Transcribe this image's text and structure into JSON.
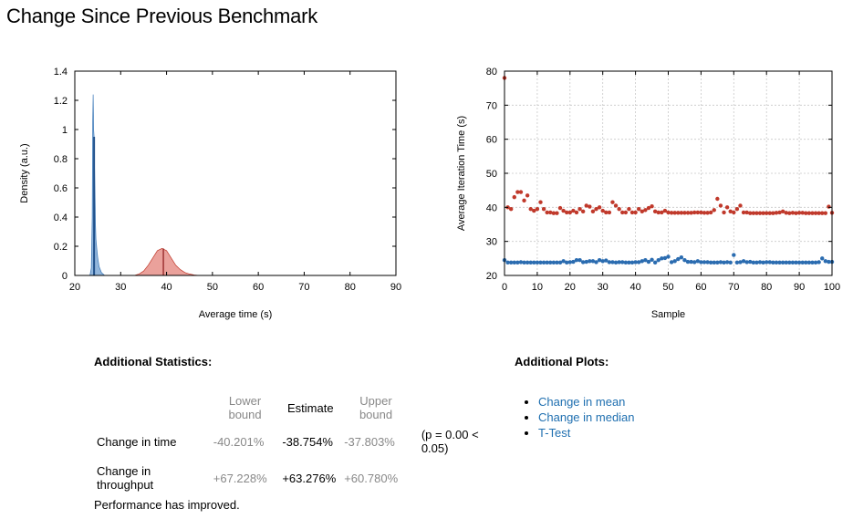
{
  "title": "Change Since Previous Benchmark",
  "chart_data": [
    {
      "type": "area",
      "name": "density",
      "xlabel": "Average time (s)",
      "ylabel": "Density (a.u.)",
      "xlim": [
        20,
        90
      ],
      "ylim": [
        0,
        1.4
      ],
      "xticks": [
        20,
        30,
        40,
        50,
        60,
        70,
        80,
        90
      ],
      "yticks": [
        0,
        0.2,
        0.4,
        0.6,
        0.8,
        1,
        1.2,
        1.4
      ],
      "series": [
        {
          "color": "#3b78b8",
          "fill": "#7fa9d6",
          "x": [
            23.3,
            23.6,
            23.8,
            23.9,
            24.0,
            24.1,
            24.2,
            24.3,
            24.4,
            24.5,
            24.6,
            24.8,
            25.0,
            25.3,
            25.8,
            26.5
          ],
          "y": [
            0,
            0.05,
            0.4,
            1.05,
            1.24,
            1.0,
            0.95,
            0.75,
            0.55,
            0.35,
            0.25,
            0.18,
            0.12,
            0.06,
            0.02,
            0
          ],
          "estimate": 24.2
        },
        {
          "color": "#c0392b",
          "fill": "#e6908a",
          "x": [
            33,
            34,
            35,
            36,
            37,
            38,
            39,
            40,
            41,
            42,
            43,
            44,
            45,
            46,
            47
          ],
          "y": [
            0,
            0.01,
            0.03,
            0.07,
            0.12,
            0.17,
            0.185,
            0.17,
            0.12,
            0.07,
            0.04,
            0.02,
            0.01,
            0.003,
            0
          ],
          "estimate": 39.3
        }
      ]
    },
    {
      "type": "scatter",
      "name": "iterations",
      "xlabel": "Sample",
      "ylabel": "Average Iteration Time (s)",
      "xlim": [
        0,
        100
      ],
      "ylim": [
        20,
        80
      ],
      "xticks": [
        0,
        10,
        20,
        30,
        40,
        50,
        60,
        70,
        80,
        90,
        100
      ],
      "yticks": [
        20,
        30,
        40,
        50,
        60,
        70,
        80
      ],
      "grid": true,
      "series": [
        {
          "color": "#c0392b",
          "values": [
            78,
            40,
            39.5,
            43,
            44.5,
            44.5,
            42,
            43.5,
            39.5,
            39,
            39.5,
            41.5,
            39.5,
            38.5,
            38.5,
            38.3,
            38.3,
            39.8,
            39,
            38.5,
            38.5,
            39,
            38.5,
            39.5,
            38.8,
            40.5,
            40.2,
            38.8,
            39.5,
            40,
            39,
            38.5,
            38.5,
            41.5,
            40.5,
            39.5,
            38.5,
            38.5,
            39.5,
            38.5,
            38.5,
            39.5,
            38.8,
            39.2,
            39.8,
            40.3,
            38.8,
            38.5,
            38.5,
            39,
            38.5,
            38.4,
            38.4,
            38.4,
            38.4,
            38.4,
            38.4,
            38.4,
            38.5,
            38.5,
            38.5,
            38.4,
            38.4,
            38.5,
            39.2,
            42.5,
            40.5,
            38.5,
            40,
            38.8,
            38.5,
            39.5,
            40.5,
            38.5,
            38.5,
            38.3,
            38.3,
            38.3,
            38.3,
            38.3,
            38.3,
            38.3,
            38.3,
            38.4,
            38.5,
            38.8,
            38.4,
            38.3,
            38.4,
            38.3,
            38.4,
            38.4,
            38.3,
            38.3,
            38.3,
            38.3,
            38.3,
            38.3,
            38.3,
            40.2,
            38.4
          ]
        },
        {
          "color": "#2b6cb0",
          "values": [
            24.5,
            23.8,
            23.8,
            23.8,
            23.8,
            23.9,
            23.8,
            23.8,
            23.8,
            23.8,
            23.8,
            23.8,
            23.8,
            23.8,
            23.8,
            23.8,
            23.8,
            23.8,
            24.2,
            23.8,
            23.9,
            24.0,
            24.5,
            24.5,
            23.9,
            24.0,
            24.2,
            24.2,
            23.9,
            24.5,
            24.2,
            24.4,
            23.9,
            23.9,
            23.8,
            23.9,
            23.9,
            23.8,
            23.8,
            23.8,
            23.9,
            23.9,
            24.2,
            24.5,
            24.0,
            24.6,
            23.8,
            24.5,
            25.0,
            25.1,
            25.5,
            23.9,
            24.2,
            24.8,
            25.3,
            24.5,
            24.0,
            24.0,
            23.9,
            24.2,
            23.9,
            23.9,
            23.9,
            23.8,
            23.8,
            23.8,
            23.9,
            23.8,
            23.9,
            23.8,
            26.0,
            23.8,
            23.9,
            24.2,
            23.9,
            24.0,
            23.8,
            23.8,
            23.9,
            23.8,
            23.9,
            23.9,
            23.8,
            23.8,
            23.8,
            23.8,
            23.8,
            23.8,
            23.8,
            23.8,
            23.8,
            23.8,
            23.8,
            23.8,
            23.8,
            23.8,
            23.9,
            25.0,
            24.2,
            24.0,
            24.0
          ]
        }
      ]
    }
  ],
  "stats": {
    "heading": "Additional Statistics:",
    "col_lower": "Lower bound",
    "col_estimate": "Estimate",
    "col_upper": "Upper bound",
    "rows": [
      {
        "label": "Change in time",
        "lower": "-40.201%",
        "estimate": "-38.754%",
        "upper": "-37.803%",
        "p": "(p = 0.00 < 0.05)"
      },
      {
        "label": "Change in throughput",
        "lower": "+67.228%",
        "estimate": "+63.276%",
        "upper": "+60.780%",
        "p": ""
      }
    ],
    "note": "Performance has improved."
  },
  "plots": {
    "heading": "Additional Plots:",
    "links": [
      "Change in mean",
      "Change in median",
      "T-Test"
    ]
  }
}
